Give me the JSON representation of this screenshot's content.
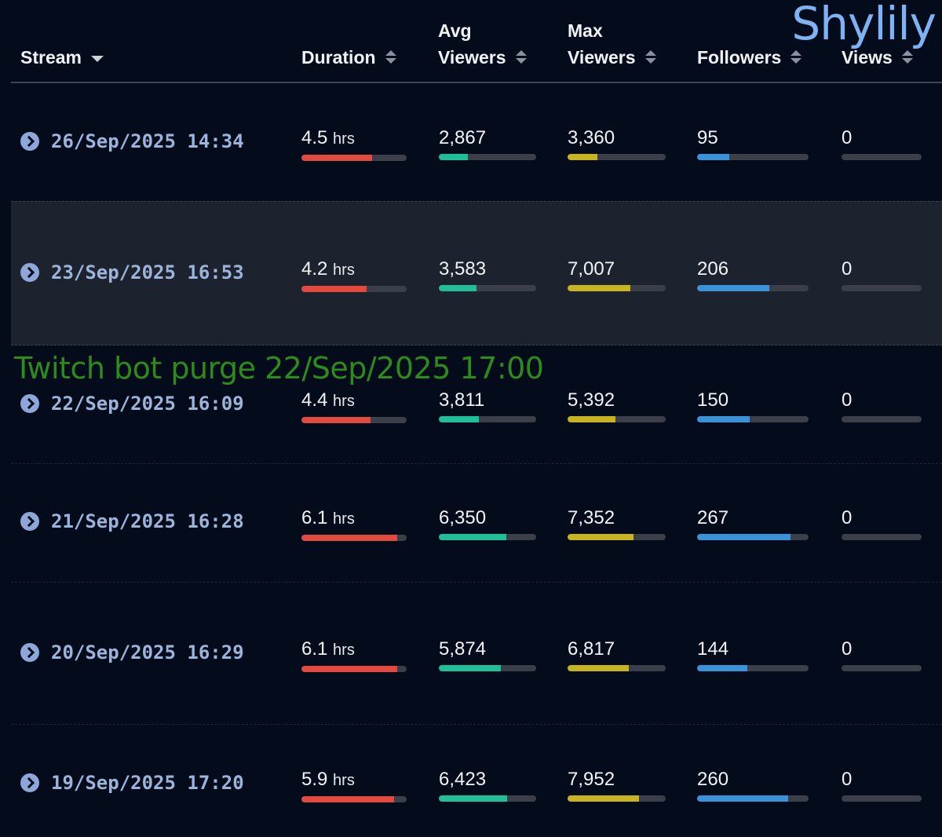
{
  "brand": "Shylily",
  "annotation": "Twitch bot purge 22/Sep/2025 17:00",
  "columns": {
    "stream": "Stream",
    "duration": "Duration",
    "avg_viewers_1": "Avg",
    "avg_viewers_2": "Viewers",
    "max_viewers_1": "Max",
    "max_viewers_2": "Viewers",
    "followers": "Followers",
    "views": "Views"
  },
  "unit_hours": "hrs",
  "colors": {
    "duration": "#e24a3f",
    "avg_viewers": "#1fbf9a",
    "max_viewers": "#c8b41e",
    "followers": "#3a92d8",
    "views": "#3a3f4a"
  },
  "rows": [
    {
      "date": "26/Sep/2025 14:34",
      "duration": "4.5",
      "avg": "2,867",
      "max": "3,360",
      "followers": "95",
      "views": "0",
      "bars": {
        "duration": 0.67,
        "avg": 0.3,
        "max": 0.3,
        "followers": 0.29,
        "views": 0
      }
    },
    {
      "date": "23/Sep/2025 16:53",
      "duration": "4.2",
      "avg": "3,583",
      "max": "7,007",
      "followers": "206",
      "views": "0",
      "bars": {
        "duration": 0.62,
        "avg": 0.39,
        "max": 0.64,
        "followers": 0.65,
        "views": 0
      }
    },
    {
      "date": "22/Sep/2025 16:09",
      "duration": "4.4",
      "avg": "3,811",
      "max": "5,392",
      "followers": "150",
      "views": "0",
      "bars": {
        "duration": 0.66,
        "avg": 0.41,
        "max": 0.49,
        "followers": 0.47,
        "views": 0
      }
    },
    {
      "date": "21/Sep/2025 16:28",
      "duration": "6.1",
      "avg": "6,350",
      "max": "7,352",
      "followers": "267",
      "views": "0",
      "bars": {
        "duration": 0.91,
        "avg": 0.69,
        "max": 0.67,
        "followers": 0.84,
        "views": 0
      }
    },
    {
      "date": "20/Sep/2025 16:29",
      "duration": "6.1",
      "avg": "5,874",
      "max": "6,817",
      "followers": "144",
      "views": "0",
      "bars": {
        "duration": 0.91,
        "avg": 0.64,
        "max": 0.62,
        "followers": 0.45,
        "views": 0
      }
    },
    {
      "date": "19/Sep/2025 17:20",
      "duration": "5.9",
      "avg": "6,423",
      "max": "7,952",
      "followers": "260",
      "views": "0",
      "bars": {
        "duration": 0.88,
        "avg": 0.7,
        "max": 0.73,
        "followers": 0.82,
        "views": 0
      }
    }
  ]
}
